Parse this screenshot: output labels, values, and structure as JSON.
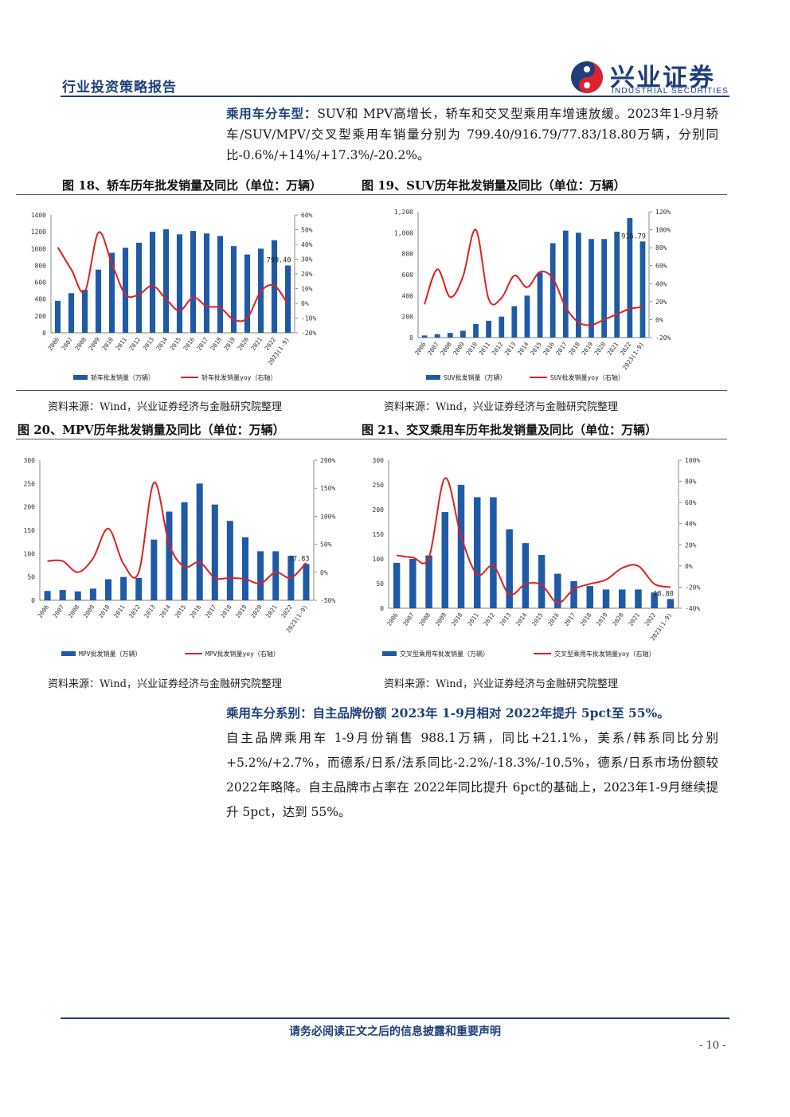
{
  "header": {
    "report_type": "行业投资策略报告",
    "logo_cn": "兴业证券",
    "logo_en": "INDUSTRIAL SECURITIES"
  },
  "intro": {
    "lead": "乘用车分车型：",
    "text": "SUV和 MPV高增长，轿车和交叉型乘用车增速放缓。2023年1-9月轿车/SUV/MPV/交叉型乘用车销量分别为 799.40/916.79/77.83/18.80万辆，分别同比-0.6%/+14%/+17.3%/-20.2%。"
  },
  "figures": {
    "fig18_title": "图 18、轿车历年批发销量及同比（单位：万辆）",
    "fig19_title": "图 19、SUV历年批发销量及同比（单位：万辆）",
    "fig20_title": "图 20、MPV历年批发销量及同比（单位：万辆）",
    "fig21_title": "图 21、交叉乘用车历年批发销量及同比（单位：万辆）",
    "source": "资料来源：Wind，兴业证券经济与金融研究院整理"
  },
  "chart_data": [
    {
      "type": "bar",
      "categories": [
        "2006",
        "2007",
        "2008",
        "2009",
        "2010",
        "2011",
        "2012",
        "2013",
        "2014",
        "2015",
        "2016",
        "2017",
        "2018",
        "2019",
        "2020",
        "2021",
        "2022",
        "2023(1-9)"
      ],
      "series": [
        {
          "name": "轿车批发销量（万辆）",
          "type": "bar",
          "axis": "left",
          "color": "#1f5aa6",
          "values": [
            380,
            470,
            510,
            750,
            950,
            1010,
            1070,
            1200,
            1230,
            1170,
            1210,
            1180,
            1150,
            1030,
            930,
            1000,
            1100,
            799.4
          ]
        },
        {
          "name": "轿车批发销量yoy（右轴）",
          "type": "line",
          "axis": "right",
          "color": "#e02020",
          "values": [
            0.38,
            0.23,
            0.08,
            0.48,
            0.27,
            0.06,
            0.06,
            0.12,
            0.03,
            -0.05,
            0.04,
            -0.02,
            -0.03,
            -0.11,
            -0.1,
            0.08,
            0.12,
            -0.006
          ]
        }
      ],
      "ylim": [
        0,
        1400
      ],
      "y_ticks": [
        "0",
        "200",
        "400",
        "600",
        "800",
        "1000",
        "1200",
        "1400"
      ],
      "y2lim": [
        -0.2,
        0.6
      ],
      "y2_ticks": [
        "-20%",
        "-10%",
        "0%",
        "10%",
        "20%",
        "30%",
        "40%",
        "50%",
        "60%"
      ],
      "data_label": "799.40"
    },
    {
      "type": "bar",
      "categories": [
        "2006",
        "2007",
        "2008",
        "2009",
        "2010",
        "2011",
        "2012",
        "2013",
        "2014",
        "2015",
        "2016",
        "2017",
        "2018",
        "2019",
        "2020",
        "2021",
        "2022",
        "2023(1-9)"
      ],
      "series": [
        {
          "name": "SUV批发销量（万辆）",
          "type": "bar",
          "axis": "left",
          "color": "#1f5aa6",
          "values": [
            20,
            32,
            45,
            65,
            130,
            160,
            200,
            300,
            400,
            620,
            900,
            1020,
            1000,
            940,
            940,
            1010,
            1140,
            916.79
          ]
        },
        {
          "name": "SUV批发销量yoy（右轴）",
          "type": "line",
          "axis": "right",
          "color": "#e02020",
          "values": [
            0.17,
            0.56,
            0.25,
            0.48,
            1.0,
            0.23,
            0.24,
            0.49,
            0.36,
            0.53,
            0.46,
            0.14,
            -0.03,
            -0.06,
            0.0,
            0.06,
            0.12,
            0.14
          ]
        }
      ],
      "ylim": [
        0,
        1200
      ],
      "y_ticks": [
        "0",
        "200",
        "400",
        "600",
        "800",
        "1,000",
        "1,200"
      ],
      "y2lim": [
        -0.2,
        1.2
      ],
      "y2_ticks": [
        "-20%",
        "0%",
        "20%",
        "40%",
        "60%",
        "80%",
        "100%",
        "120%"
      ],
      "data_label": "916.79"
    },
    {
      "type": "bar",
      "categories": [
        "2006",
        "2007",
        "2008",
        "2009",
        "2010",
        "2011",
        "2012",
        "2013",
        "2014",
        "2015",
        "2016",
        "2017",
        "2018",
        "2019",
        "2020",
        "2021",
        "2022",
        "2023(1-9)"
      ],
      "series": [
        {
          "name": "MPV批发销量（万辆）",
          "type": "bar",
          "axis": "left",
          "color": "#1f5aa6",
          "values": [
            20,
            22,
            19,
            25,
            45,
            50,
            48,
            130,
            190,
            210,
            250,
            205,
            170,
            135,
            105,
            105,
            95,
            77.83
          ]
        },
        {
          "name": "MPV批发销量yoy（右轴）",
          "type": "line",
          "axis": "right",
          "color": "#e02020",
          "values": [
            0.2,
            0.2,
            0.0,
            0.25,
            0.78,
            0.15,
            0.0,
            1.6,
            0.5,
            0.1,
            0.18,
            -0.1,
            -0.1,
            -0.12,
            -0.2,
            0.0,
            -0.1,
            0.17
          ]
        }
      ],
      "ylim": [
        0,
        300
      ],
      "y_ticks": [
        "0",
        "50",
        "100",
        "150",
        "200",
        "250",
        "300"
      ],
      "y2lim": [
        -0.5,
        2.0
      ],
      "y2_ticks": [
        "-50%",
        "0%",
        "50%",
        "100%",
        "150%",
        "200%"
      ],
      "data_label": "77.83"
    },
    {
      "type": "bar",
      "categories": [
        "2006",
        "2007",
        "2008",
        "2009",
        "2010",
        "2011",
        "2012",
        "2013",
        "2014",
        "2015",
        "2016",
        "2017",
        "2018",
        "2019",
        "2020",
        "2021",
        "2022",
        "2023(1-9)"
      ],
      "series": [
        {
          "name": "交叉型乘用车批发销量（万辆）",
          "type": "bar",
          "axis": "left",
          "color": "#1f5aa6",
          "values": [
            92,
            100,
            107,
            195,
            250,
            225,
            225,
            160,
            132,
            108,
            70,
            55,
            45,
            38,
            38,
            38,
            32,
            18.8
          ]
        },
        {
          "name": "交叉型乘用车批发销量yoy（右轴）",
          "type": "line",
          "axis": "right",
          "color": "#e02020",
          "values": [
            0.1,
            0.08,
            0.08,
            0.83,
            0.28,
            -0.08,
            0.0,
            -0.27,
            -0.17,
            -0.18,
            -0.35,
            -0.22,
            -0.17,
            -0.13,
            -0.02,
            0.0,
            -0.17,
            -0.2
          ]
        }
      ],
      "ylim": [
        0,
        300
      ],
      "y_ticks": [
        "0",
        "50",
        "100",
        "150",
        "200",
        "250",
        "300"
      ],
      "y2lim": [
        -0.4,
        1.0
      ],
      "y2_ticks": [
        "-40%",
        "-20%",
        "0%",
        "20%",
        "40%",
        "60%",
        "80%",
        "100%"
      ],
      "data_label": "18.80"
    }
  ],
  "section2": {
    "lead": "乘用车分系别：自主品牌份额 2023年 1-9月相对 2022年提升 5pct至 55%。",
    "text": "自主品牌乘用车 1-9月份销售 988.1万辆，同比+21.1%，美系/韩系同比分别+5.2%/+2.7%，而德系/日系/法系同比-2.2%/-18.3%/-10.5%，德系/日系市场份额较 2022年略降。自主品牌市占率在 2022年同比提升 6pct的基础上，2023年1-9月继续提升 5pct，达到 55%。"
  },
  "footer": {
    "disclaimer": "请务必阅读正文之后的信息披露和重要声明",
    "page": "- 10 -"
  }
}
